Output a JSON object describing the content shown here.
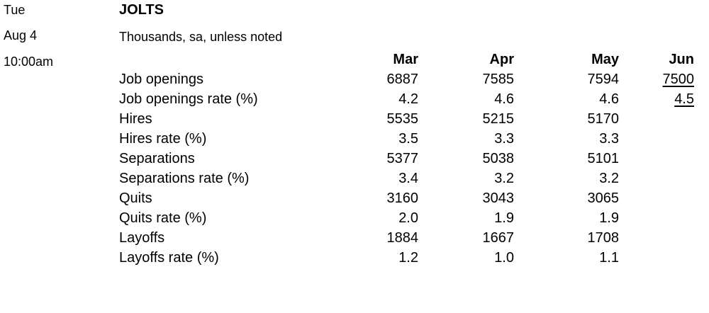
{
  "dateline": {
    "day": "Tue",
    "date": "Aug 4",
    "time": "10:00am"
  },
  "title": "JOLTS",
  "subtitle": "Thousands, sa, unless noted",
  "columns": [
    "Mar",
    "Apr",
    "May",
    "Jun"
  ],
  "rows": [
    {
      "label": "Job openings",
      "values": [
        "6887",
        "7585",
        "7594",
        "7500"
      ]
    },
    {
      "label": "Job openings rate (%)",
      "values": [
        "4.2",
        "4.6",
        "4.6",
        "4.5"
      ]
    },
    {
      "label": "Hires",
      "values": [
        "5535",
        "5215",
        "5170",
        ""
      ]
    },
    {
      "label": "Hires rate (%)",
      "values": [
        "3.5",
        "3.3",
        "3.3",
        ""
      ]
    },
    {
      "label": "Separations",
      "values": [
        "5377",
        "5038",
        "5101",
        ""
      ]
    },
    {
      "label": "Separations rate (%)",
      "values": [
        "3.4",
        "3.2",
        "3.2",
        ""
      ]
    },
    {
      "label": "Quits",
      "values": [
        "3160",
        "3043",
        "3065",
        ""
      ]
    },
    {
      "label": "Quits rate (%)",
      "values": [
        "2.0",
        "1.9",
        "1.9",
        ""
      ]
    },
    {
      "label": "Layoffs",
      "values": [
        "1884",
        "1667",
        "1708",
        ""
      ]
    },
    {
      "label": "Layoffs rate (%)",
      "values": [
        "1.2",
        "1.0",
        "1.1",
        ""
      ]
    }
  ]
}
